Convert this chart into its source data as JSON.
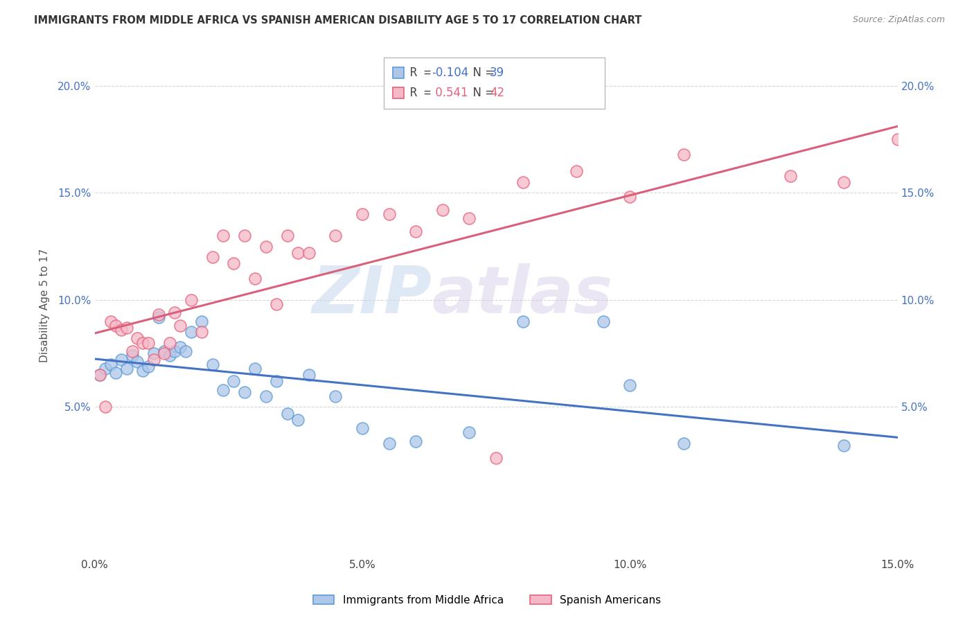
{
  "title": "IMMIGRANTS FROM MIDDLE AFRICA VS SPANISH AMERICAN DISABILITY AGE 5 TO 17 CORRELATION CHART",
  "source": "Source: ZipAtlas.com",
  "ylabel": "Disability Age 5 to 17",
  "xlim": [
    0.0,
    0.15
  ],
  "ylim": [
    -0.02,
    0.215
  ],
  "yticks": [
    0.05,
    0.1,
    0.15,
    0.2
  ],
  "ytick_labels": [
    "5.0%",
    "10.0%",
    "15.0%",
    "20.0%"
  ],
  "xticks": [
    0.0,
    0.05,
    0.1,
    0.15
  ],
  "xtick_labels": [
    "0.0%",
    "5.0%",
    "10.0%",
    "15.0%"
  ],
  "blue_R": "-0.104",
  "blue_N": "39",
  "pink_R": "0.541",
  "pink_N": "42",
  "blue_color": "#aec6e8",
  "pink_color": "#f5b8c8",
  "blue_edge_color": "#5b9bd5",
  "pink_edge_color": "#e8607a",
  "blue_line_color": "#4472c4",
  "pink_line_color": "#d95f7a",
  "legend_label_blue": "Immigrants from Middle Africa",
  "legend_label_pink": "Spanish Americans",
  "watermark_zip": "ZIP",
  "watermark_atlas": "atlas",
  "blue_scatter_x": [
    0.001,
    0.002,
    0.003,
    0.004,
    0.005,
    0.006,
    0.007,
    0.008,
    0.009,
    0.01,
    0.011,
    0.012,
    0.013,
    0.014,
    0.015,
    0.016,
    0.017,
    0.018,
    0.02,
    0.022,
    0.024,
    0.026,
    0.028,
    0.03,
    0.032,
    0.034,
    0.036,
    0.038,
    0.04,
    0.045,
    0.05,
    0.055,
    0.06,
    0.07,
    0.08,
    0.095,
    0.1,
    0.11,
    0.14
  ],
  "blue_scatter_y": [
    0.065,
    0.068,
    0.07,
    0.066,
    0.072,
    0.068,
    0.074,
    0.071,
    0.067,
    0.069,
    0.075,
    0.092,
    0.076,
    0.074,
    0.076,
    0.078,
    0.076,
    0.085,
    0.09,
    0.07,
    0.058,
    0.062,
    0.057,
    0.068,
    0.055,
    0.062,
    0.047,
    0.044,
    0.065,
    0.055,
    0.04,
    0.033,
    0.034,
    0.038,
    0.09,
    0.09,
    0.06,
    0.033,
    0.032
  ],
  "pink_scatter_x": [
    0.001,
    0.002,
    0.003,
    0.004,
    0.005,
    0.006,
    0.007,
    0.008,
    0.009,
    0.01,
    0.011,
    0.012,
    0.013,
    0.014,
    0.015,
    0.016,
    0.018,
    0.02,
    0.022,
    0.024,
    0.026,
    0.028,
    0.03,
    0.032,
    0.034,
    0.036,
    0.038,
    0.04,
    0.045,
    0.05,
    0.055,
    0.06,
    0.065,
    0.07,
    0.075,
    0.08,
    0.09,
    0.1,
    0.11,
    0.13,
    0.14,
    0.15
  ],
  "pink_scatter_y": [
    0.065,
    0.05,
    0.09,
    0.088,
    0.086,
    0.087,
    0.076,
    0.082,
    0.08,
    0.08,
    0.072,
    0.093,
    0.075,
    0.08,
    0.094,
    0.088,
    0.1,
    0.085,
    0.12,
    0.13,
    0.117,
    0.13,
    0.11,
    0.125,
    0.098,
    0.13,
    0.122,
    0.122,
    0.13,
    0.14,
    0.14,
    0.132,
    0.142,
    0.138,
    0.026,
    0.155,
    0.16,
    0.148,
    0.168,
    0.158,
    0.155,
    0.175
  ]
}
